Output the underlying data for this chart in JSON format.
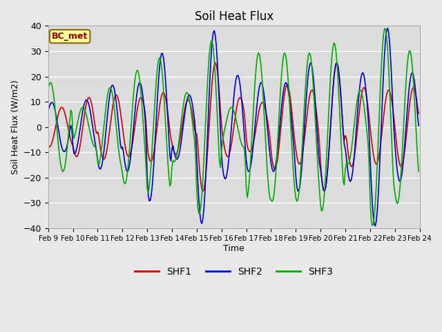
{
  "title": "Soil Heat Flux",
  "ylabel": "Soil Heat Flux (W/m2)",
  "xlabel": "Time",
  "ylim": [
    -40,
    40
  ],
  "background_color": "#e8e8e8",
  "plot_bg_color": "#dcdcdc",
  "grid_color": "white",
  "annotation_text": "BC_met",
  "annotation_color": "#8b0000",
  "annotation_bg": "#ffff99",
  "annotation_border": "#8b6914",
  "line_colors": {
    "SHF1": "#cc0000",
    "SHF2": "#0000cc",
    "SHF3": "#00aa00"
  },
  "xtick_labels": [
    "Feb 9",
    "Feb 10",
    "Feb 11",
    "Feb 12",
    "Feb 13",
    "Feb 14",
    "Feb 15",
    "Feb 16",
    "Feb 17",
    "Feb 18",
    "Feb 19",
    "Feb 20",
    "Feb 21",
    "Feb 22",
    "Feb 23",
    "Feb 24"
  ],
  "n_days": 15,
  "hours_per_day": 24,
  "daily_amplitudes_shf1": [
    8,
    12,
    13,
    12,
    14,
    11,
    26,
    12,
    10,
    17,
    15,
    26,
    16,
    15,
    16
  ],
  "daily_amplitudes_shf2": [
    10,
    11,
    17,
    18,
    30,
    13,
    39,
    21,
    18,
    18,
    26,
    26,
    22,
    40,
    22
  ],
  "daily_amplitudes_shf3": [
    18,
    8,
    16,
    23,
    28,
    14,
    35,
    8,
    30,
    30,
    30,
    34,
    15,
    40,
    31
  ],
  "phase_offsets_shf1": [
    0.3,
    0.4,
    0.5,
    0.5,
    0.4,
    0.4,
    0.5,
    0.5,
    0.4,
    0.4,
    0.4,
    0.4,
    0.5,
    0.5,
    0.5
  ],
  "phase_offsets_shf2": [
    -0.1,
    0.3,
    0.35,
    0.45,
    0.35,
    0.45,
    0.45,
    0.4,
    0.35,
    0.35,
    0.35,
    0.4,
    0.45,
    0.45,
    0.45
  ],
  "phase_offsets_shf3": [
    -0.15,
    0.15,
    0.25,
    0.35,
    0.25,
    0.35,
    0.35,
    0.15,
    0.25,
    0.3,
    0.3,
    0.3,
    0.35,
    0.35,
    0.35
  ]
}
